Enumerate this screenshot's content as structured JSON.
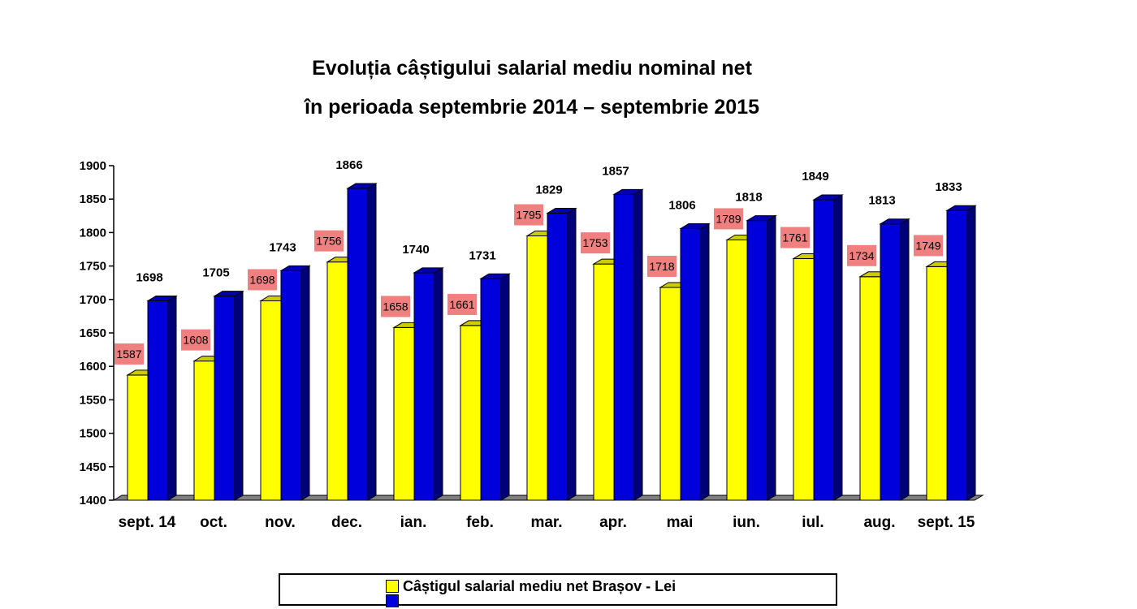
{
  "title_line1": "Evoluția câștigului salarial mediu nominal net",
  "title_line2": "în perioada septembrie 2014 – septembrie 2015",
  "colors": {
    "series1": "#ffff00",
    "series2": "#0000dd",
    "label_box": "#f08080",
    "floor": "#808080"
  },
  "chart_data": {
    "type": "bar",
    "categories": [
      "sept. 14",
      "oct.",
      "nov.",
      "dec.",
      "ian.",
      "feb.",
      "mar.",
      "apr.",
      "mai",
      "iun.",
      "iul.",
      "aug.",
      "sept. 15"
    ],
    "series": [
      {
        "name": "Câștigul salarial mediu net Brașov - Lei",
        "values": [
          1587,
          1608,
          1698,
          1756,
          1658,
          1661,
          1795,
          1753,
          1718,
          1789,
          1761,
          1734,
          1749
        ]
      },
      {
        "name": "",
        "values": [
          1698,
          1705,
          1743,
          1866,
          1740,
          1731,
          1829,
          1857,
          1806,
          1818,
          1849,
          1813,
          1833
        ]
      }
    ],
    "ylim": [
      1400,
      1900
    ],
    "yticks": [
      1400,
      1450,
      1500,
      1550,
      1600,
      1650,
      1700,
      1750,
      1800,
      1850,
      1900
    ],
    "grid": false,
    "legend_position": "bottom",
    "bar_style": "3d"
  }
}
